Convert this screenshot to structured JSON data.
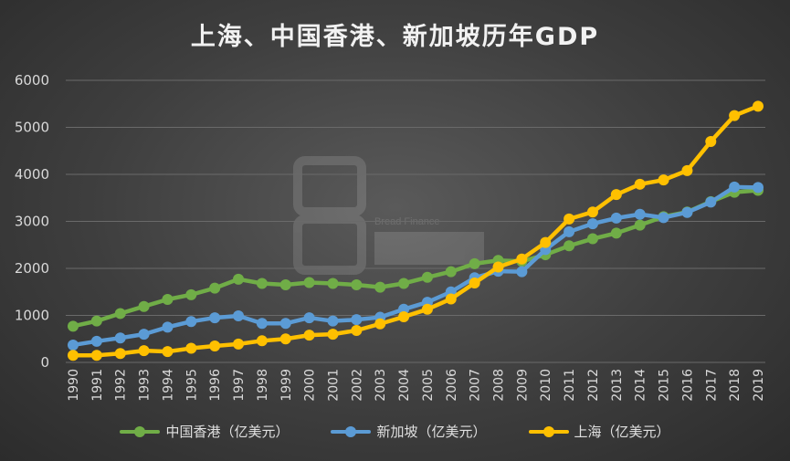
{
  "chart_data": {
    "type": "line",
    "title": "上海、中国香港、新加坡历年GDP",
    "xlabel": "",
    "ylabel": "",
    "ylim": [
      0,
      6000
    ],
    "yticks": [
      0,
      1000,
      2000,
      3000,
      4000,
      5000,
      6000
    ],
    "categories": [
      "1990",
      "1991",
      "1992",
      "1993",
      "1994",
      "1995",
      "1996",
      "1997",
      "1998",
      "1999",
      "2000",
      "2001",
      "2002",
      "2003",
      "2004",
      "2005",
      "2006",
      "2007",
      "2008",
      "2009",
      "2010",
      "2011",
      "2012",
      "2013",
      "2014",
      "2015",
      "2016",
      "2017",
      "2018",
      "2019"
    ],
    "series": [
      {
        "name": "中国香港（亿美元）",
        "color": "#70ad47",
        "values": [
          770,
          880,
          1040,
          1190,
          1340,
          1440,
          1580,
          1770,
          1680,
          1650,
          1700,
          1680,
          1650,
          1600,
          1680,
          1810,
          1930,
          2100,
          2170,
          2150,
          2290,
          2480,
          2630,
          2750,
          2920,
          3100,
          3200,
          3420,
          3620,
          3660
        ]
      },
      {
        "name": "新加坡（亿美元）",
        "color": "#5b9bd5",
        "values": [
          370,
          450,
          520,
          600,
          750,
          870,
          950,
          990,
          830,
          830,
          950,
          880,
          910,
          960,
          1130,
          1280,
          1500,
          1800,
          1940,
          1930,
          2400,
          2780,
          2950,
          3070,
          3150,
          3080,
          3190,
          3410,
          3730,
          3720
        ]
      },
      {
        "name": "上海（亿美元）",
        "color": "#ffc000",
        "values": [
          150,
          150,
          190,
          250,
          230,
          300,
          350,
          390,
          460,
          500,
          580,
          600,
          680,
          820,
          970,
          1130,
          1350,
          1690,
          2030,
          2200,
          2550,
          3050,
          3200,
          3570,
          3790,
          3880,
          4080,
          4700,
          5250,
          5450
        ]
      }
    ]
  },
  "watermark": {
    "text": "Bread Finance"
  }
}
